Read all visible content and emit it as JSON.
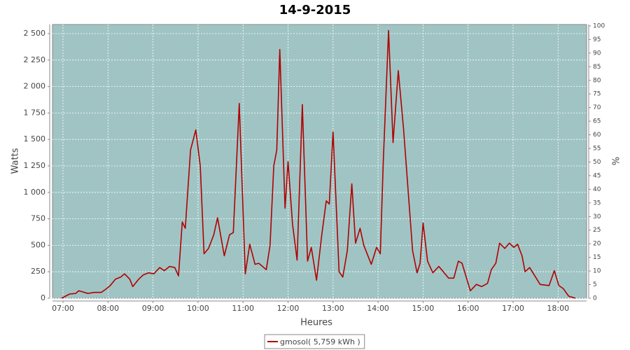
{
  "chart_data": {
    "type": "line",
    "title": "14-9-2015",
    "x_label": "Heures",
    "y_label": "Watts",
    "y2_label": "%",
    "x": [
      418,
      429,
      437,
      441,
      446,
      453,
      462,
      471,
      478,
      483,
      490,
      497,
      502,
      509,
      513,
      521,
      527,
      534,
      541,
      549,
      555,
      562,
      569,
      574,
      579,
      583,
      590,
      597,
      603,
      608,
      614,
      621,
      626,
      635,
      642,
      647,
      655,
      663,
      669,
      676,
      681,
      691,
      696,
      701,
      705,
      709,
      716,
      720,
      726,
      732,
      739,
      746,
      751,
      758,
      765,
      771,
      775,
      780,
      788,
      793,
      799,
      805,
      810,
      816,
      821,
      831,
      838,
      843,
      847,
      854,
      860,
      867,
      874,
      886,
      892,
      896,
      900,
      906,
      913,
      921,
      927,
      934,
      941,
      947,
      952,
      963,
      971,
      978,
      986,
      991,
      997,
      1002,
      1009,
      1015,
      1021,
      1026,
      1032,
      1036,
      1042,
      1050,
      1056,
      1068,
      1075,
      1081,
      1087,
      1094,
      1103
    ],
    "series": [
      {
        "name": "gmosol( 5,759 kWh )",
        "color": "#b00000",
        "values": [
          0,
          40,
          45,
          70,
          60,
          45,
          55,
          55,
          90,
          120,
          180,
          200,
          230,
          180,
          110,
          180,
          220,
          240,
          230,
          290,
          260,
          300,
          290,
          210,
          720,
          660,
          1400,
          1590,
          1250,
          420,
          470,
          600,
          760,
          400,
          600,
          620,
          1840,
          230,
          510,
          320,
          330,
          270,
          500,
          1250,
          1400,
          2350,
          850,
          1290,
          700,
          360,
          1830,
          350,
          480,
          170,
          600,
          920,
          890,
          1570,
          250,
          200,
          450,
          1080,
          520,
          660,
          500,
          320,
          480,
          420,
          1300,
          2530,
          1470,
          2150,
          1600,
          450,
          240,
          330,
          710,
          350,
          240,
          300,
          250,
          190,
          190,
          350,
          330,
          70,
          130,
          110,
          140,
          270,
          330,
          520,
          470,
          520,
          480,
          510,
          400,
          250,
          290,
          200,
          130,
          120,
          260,
          120,
          90,
          20,
          0
        ]
      }
    ],
    "xlim": [
      406,
      1118
    ],
    "xticks": [
      {
        "value": 420,
        "label": "07:00"
      },
      {
        "value": 480,
        "label": "08:00"
      },
      {
        "value": 540,
        "label": "09:00"
      },
      {
        "value": 600,
        "label": "10:00"
      },
      {
        "value": 660,
        "label": "11:00"
      },
      {
        "value": 720,
        "label": "12:00"
      },
      {
        "value": 780,
        "label": "13:00"
      },
      {
        "value": 840,
        "label": "14:00"
      },
      {
        "value": 900,
        "label": "15:00"
      },
      {
        "value": 960,
        "label": "16:00"
      },
      {
        "value": 1020,
        "label": "17:00"
      },
      {
        "value": 1080,
        "label": "18:00"
      }
    ],
    "ylim": [
      0,
      2586
    ],
    "yticks": [
      0,
      250,
      500,
      750,
      {
        "value": 1000,
        "label": "1 000"
      },
      {
        "value": 1250,
        "label": "1 250"
      },
      {
        "value": 1500,
        "label": "1 500"
      },
      {
        "value": 1750,
        "label": "1 750"
      },
      {
        "value": 2000,
        "label": "2 000"
      },
      {
        "value": 2250,
        "label": "2 250"
      },
      {
        "value": 2500,
        "label": "2 500"
      }
    ],
    "y2lim": [
      0,
      100.5
    ],
    "y2ticks": [
      0,
      5,
      10,
      15,
      20,
      25,
      30,
      35,
      40,
      45,
      50,
      55,
      60,
      65,
      70,
      75,
      80,
      85,
      90,
      95,
      100
    ],
    "grid": true,
    "plot_background": "#a0c4c4",
    "legend": "bottom"
  }
}
